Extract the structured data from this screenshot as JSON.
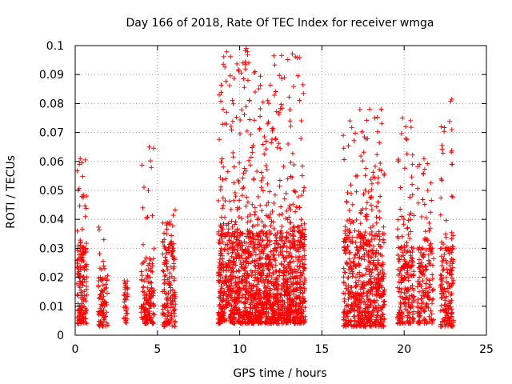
{
  "chart_data": {
    "type": "scatter",
    "title": "Day 166 of 2018, Rate Of TEC Index for receiver wmga",
    "xlabel": "GPS time / hours",
    "ylabel": "ROTI / TECUs",
    "xlim": [
      0,
      25
    ],
    "ylim": [
      0,
      0.1
    ],
    "xticks": [
      "0",
      "5",
      "10",
      "15",
      "20",
      "25"
    ],
    "yticks": [
      "0",
      "0.01",
      "0.02",
      "0.03",
      "0.04",
      "0.05",
      "0.06",
      "0.07",
      "0.08",
      "0.09",
      "0.1"
    ],
    "grid": true,
    "marker": "+",
    "color": "#ff0000",
    "clusters": [
      {
        "x": [
          0.1,
          0.7
        ],
        "y_core": [
          0.004,
          0.03
        ],
        "y_max": 0.061,
        "n": 170
      },
      {
        "x": [
          1.4,
          2.0
        ],
        "y_core": [
          0.003,
          0.02
        ],
        "y_max": 0.038,
        "n": 90
      },
      {
        "x": [
          2.95,
          3.2
        ],
        "y_core": [
          0.004,
          0.016
        ],
        "y_max": 0.019,
        "n": 35
      },
      {
        "x": [
          4.0,
          4.8
        ],
        "y_core": [
          0.004,
          0.025
        ],
        "y_max": 0.065,
        "n": 150
      },
      {
        "x": [
          5.3,
          6.1
        ],
        "y_core": [
          0.003,
          0.03
        ],
        "y_max": 0.044,
        "n": 160
      },
      {
        "x": [
          8.7,
          14.0
        ],
        "y_core": [
          0.004,
          0.035
        ],
        "y_max": 0.099,
        "n": 1700
      },
      {
        "x": [
          16.3,
          18.8
        ],
        "y_core": [
          0.003,
          0.035
        ],
        "y_max": 0.078,
        "n": 650
      },
      {
        "x": [
          19.6,
          20.6
        ],
        "y_core": [
          0.004,
          0.03
        ],
        "y_max": 0.075,
        "n": 220
      },
      {
        "x": [
          20.8,
          21.8
        ],
        "y_core": [
          0.004,
          0.03
        ],
        "y_max": 0.061,
        "n": 170
      },
      {
        "x": [
          22.2,
          23.0
        ],
        "y_core": [
          0.003,
          0.03
        ],
        "y_max": 0.0815,
        "n": 170
      }
    ],
    "outliers": [
      {
        "x": 10.4,
        "y": 0.099
      },
      {
        "x": 10.55,
        "y": 0.094
      },
      {
        "x": 10.5,
        "y": 0.088
      },
      {
        "x": 10.6,
        "y": 0.081
      },
      {
        "x": 11.7,
        "y": 0.081
      },
      {
        "x": 9.0,
        "y": 0.078
      },
      {
        "x": 9.2,
        "y": 0.077
      },
      {
        "x": 9.1,
        "y": 0.073
      },
      {
        "x": 11.7,
        "y": 0.073
      },
      {
        "x": 11.6,
        "y": 0.067
      },
      {
        "x": 22.9,
        "y": 0.0815
      },
      {
        "x": 22.9,
        "y": 0.071
      },
      {
        "x": 22.9,
        "y": 0.059
      },
      {
        "x": 22.9,
        "y": 0.048
      },
      {
        "x": 19.9,
        "y": 0.075
      },
      {
        "x": 20.1,
        "y": 0.072
      },
      {
        "x": 18.2,
        "y": 0.075
      },
      {
        "x": 18.6,
        "y": 0.078
      },
      {
        "x": 17.9,
        "y": 0.078
      },
      {
        "x": 16.7,
        "y": 0.074
      },
      {
        "x": 4.5,
        "y": 0.065
      },
      {
        "x": 4.45,
        "y": 0.05
      },
      {
        "x": 0.3,
        "y": 0.061
      },
      {
        "x": 0.25,
        "y": 0.059
      },
      {
        "x": 21.2,
        "y": 0.061
      },
      {
        "x": 16.3,
        "y": 0.069
      }
    ]
  }
}
